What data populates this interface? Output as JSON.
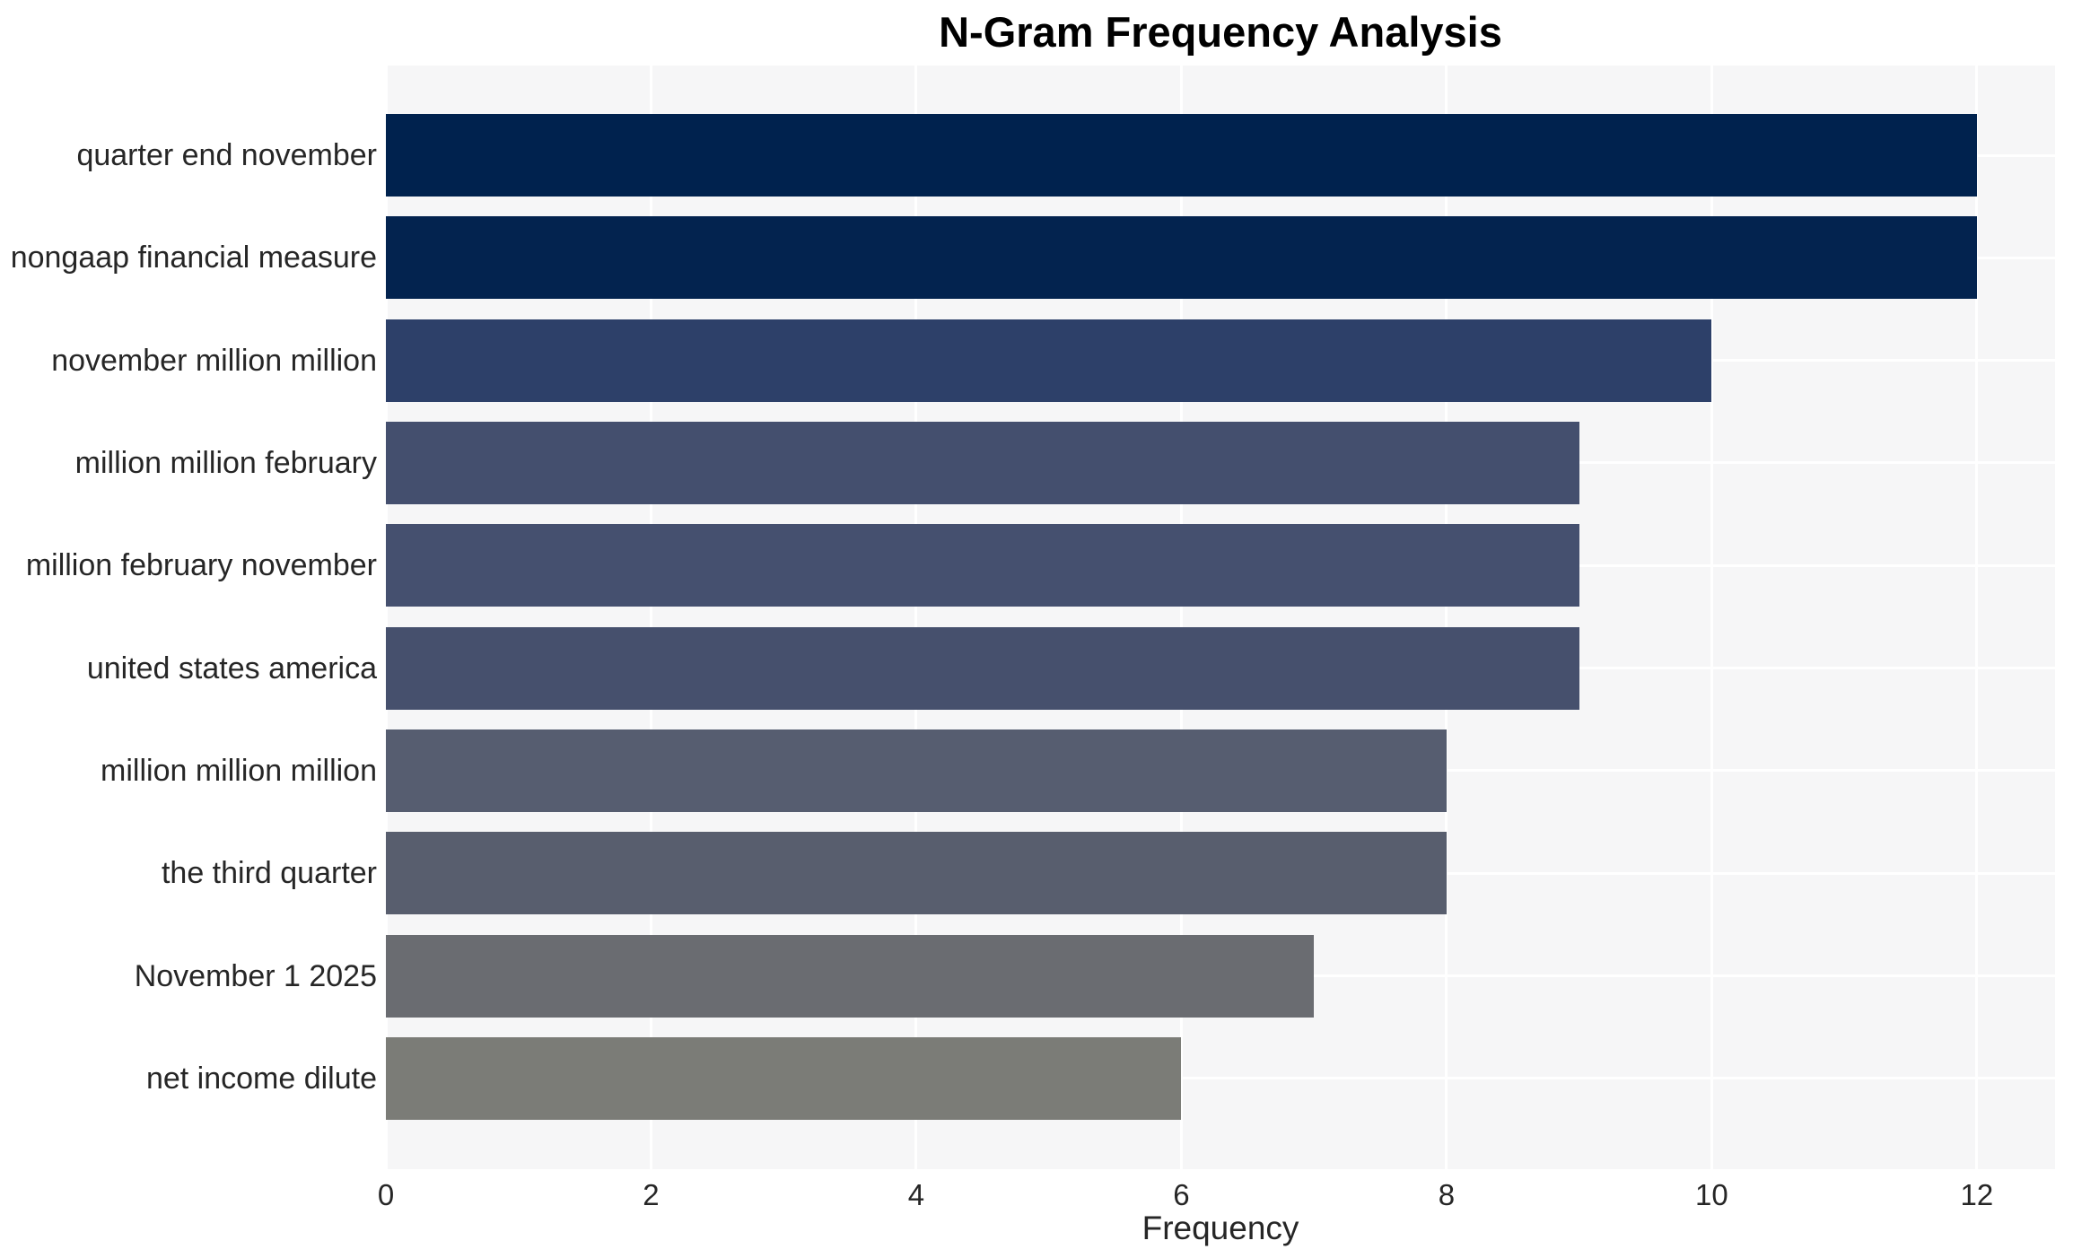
{
  "chart_data": {
    "type": "bar",
    "orientation": "horizontal",
    "title": "N-Gram Frequency Analysis",
    "xlabel": "Frequency",
    "ylabel": "",
    "categories": [
      "quarter end november",
      "nongaap financial measure",
      "november million million",
      "million million february",
      "million february november",
      "united states america",
      "million million million",
      "the third quarter",
      "November 1 2025",
      "net income dilute"
    ],
    "values": [
      12,
      12,
      10,
      9,
      9,
      9,
      8,
      8,
      7,
      6
    ],
    "bar_colors": [
      "#00224e",
      "#03234f",
      "#2d4069",
      "#444f6e",
      "#45506f",
      "#46506d",
      "#565d70",
      "#585e6e",
      "#6a6c71",
      "#7b7c77"
    ],
    "x_ticks": [
      0,
      2,
      4,
      6,
      8,
      10,
      12
    ],
    "xlim": [
      0,
      12.59
    ],
    "grid": true,
    "legend": null,
    "plot_background": "#f6f6f7",
    "grid_color": "#ffffff",
    "figure_background": "#ffffff"
  }
}
